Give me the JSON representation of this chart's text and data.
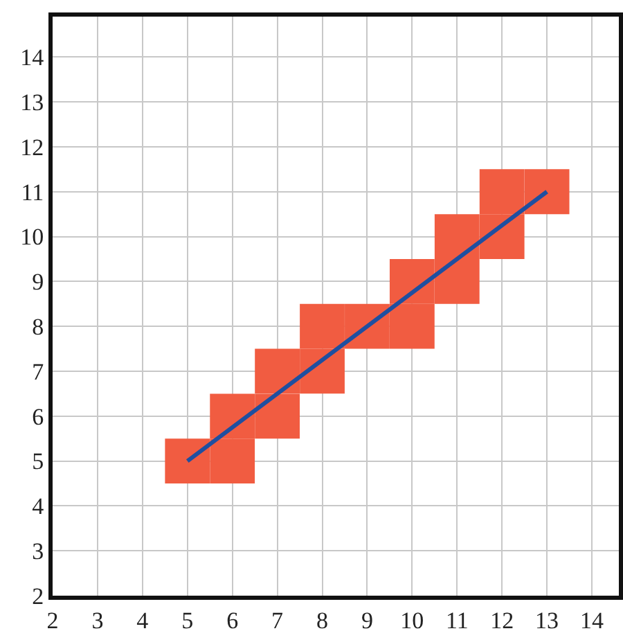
{
  "chart_data": {
    "type": "scatter",
    "grid": true,
    "xlim": [
      2,
      14.6
    ],
    "ylim": [
      2,
      14.9
    ],
    "xticks": [
      2,
      3,
      4,
      5,
      6,
      7,
      8,
      9,
      10,
      11,
      12,
      13,
      14
    ],
    "yticks": [
      2,
      3,
      4,
      5,
      6,
      7,
      8,
      9,
      10,
      11,
      12,
      13,
      14
    ],
    "series": [
      {
        "color": "#f15c41",
        "marker": "square",
        "x": [
          5,
          6,
          6,
          7,
          7,
          8,
          8,
          9,
          10,
          10,
          11,
          11,
          12,
          12,
          13
        ],
        "values": [
          5,
          5,
          6,
          6,
          7,
          7,
          8,
          8,
          8,
          9,
          9,
          10,
          10,
          11,
          11
        ]
      },
      {
        "type": "line",
        "color": "#1f4fa0",
        "x": [
          5,
          13
        ],
        "values": [
          5,
          11
        ]
      }
    ]
  }
}
